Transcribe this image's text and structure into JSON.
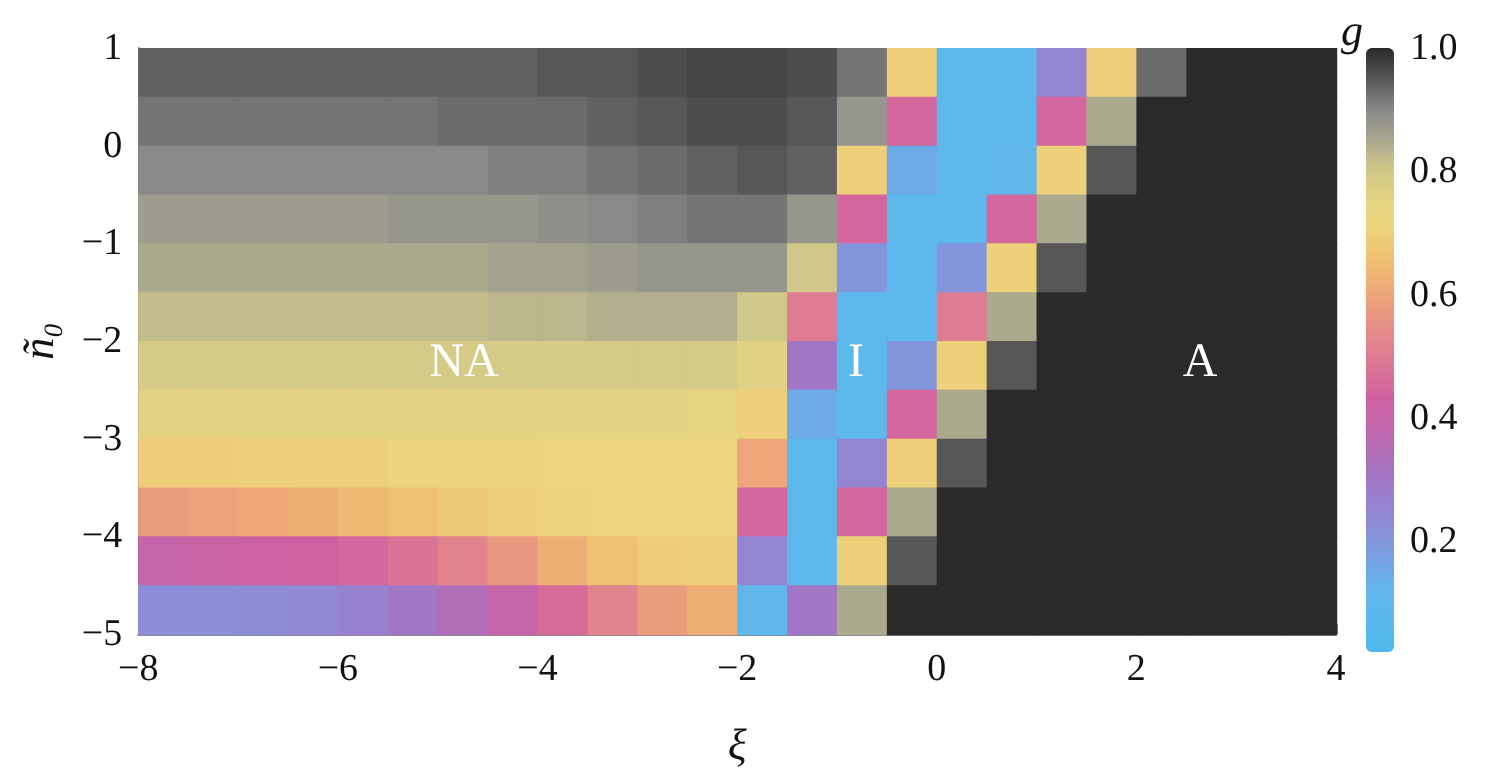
{
  "chart_data": {
    "type": "heatmap",
    "xlabel": "ξ",
    "ylabel": "ñ₀",
    "clabel": "g",
    "xlim": [
      -8,
      4
    ],
    "xticks": [
      -8,
      -6,
      -4,
      -2,
      0,
      2,
      4
    ],
    "ylim": [
      -5,
      1
    ],
    "yticks": [
      -5,
      -4,
      -3,
      -2,
      -1,
      0,
      1
    ],
    "clim": [
      0.02,
      1.0
    ],
    "cticks": [
      0.2,
      0.4,
      0.6,
      0.8,
      {
        "value": 1.0,
        "label": "1.0"
      }
    ],
    "annotations": [
      "NA",
      "I",
      "A"
    ],
    "cells": [
      [
        0.94,
        0.94,
        0.94,
        0.94,
        0.94,
        0.94,
        0.94,
        0.94,
        0.95,
        0.95,
        0.96,
        0.97,
        0.97,
        0.96,
        0.92,
        0.7,
        0.1,
        0.1,
        0.25,
        0.7,
        0.93,
        1,
        1,
        1
      ],
      [
        0.92,
        0.92,
        0.92,
        0.92,
        0.92,
        0.92,
        0.93,
        0.93,
        0.93,
        0.94,
        0.95,
        0.96,
        0.96,
        0.95,
        0.88,
        0.45,
        0.1,
        0.1,
        0.45,
        0.85,
        1,
        1,
        1,
        1
      ],
      [
        0.9,
        0.9,
        0.9,
        0.9,
        0.9,
        0.9,
        0.9,
        0.91,
        0.91,
        0.92,
        0.93,
        0.94,
        0.95,
        0.94,
        0.7,
        0.15,
        0.1,
        0.12,
        0.7,
        0.95,
        1,
        1,
        1,
        1
      ],
      [
        0.87,
        0.87,
        0.87,
        0.87,
        0.87,
        0.88,
        0.88,
        0.88,
        0.89,
        0.9,
        0.91,
        0.92,
        0.92,
        0.88,
        0.45,
        0.1,
        0.1,
        0.45,
        0.85,
        1,
        1,
        1,
        1,
        1
      ],
      [
        0.85,
        0.85,
        0.85,
        0.85,
        0.85,
        0.85,
        0.85,
        0.86,
        0.86,
        0.87,
        0.88,
        0.88,
        0.88,
        0.8,
        0.2,
        0.1,
        0.2,
        0.7,
        0.95,
        1,
        1,
        1,
        1,
        1
      ],
      [
        0.82,
        0.82,
        0.82,
        0.82,
        0.82,
        0.82,
        0.82,
        0.83,
        0.83,
        0.84,
        0.84,
        0.84,
        0.8,
        0.5,
        0.1,
        0.1,
        0.5,
        0.85,
        1,
        1,
        1,
        1,
        1,
        1
      ],
      [
        0.79,
        0.79,
        0.79,
        0.79,
        0.79,
        0.79,
        0.79,
        0.79,
        0.79,
        0.79,
        0.79,
        0.79,
        0.76,
        0.3,
        0.1,
        0.2,
        0.7,
        0.95,
        1,
        1,
        1,
        1,
        1,
        1
      ],
      [
        0.75,
        0.75,
        0.75,
        0.75,
        0.75,
        0.75,
        0.75,
        0.75,
        0.75,
        0.75,
        0.75,
        0.74,
        0.7,
        0.15,
        0.1,
        0.45,
        0.85,
        1,
        1,
        1,
        1,
        1,
        1,
        1
      ],
      [
        0.69,
        0.69,
        0.7,
        0.7,
        0.7,
        0.71,
        0.71,
        0.71,
        0.72,
        0.72,
        0.72,
        0.72,
        0.6,
        0.1,
        0.25,
        0.7,
        0.95,
        1,
        1,
        1,
        1,
        1,
        1,
        1
      ],
      [
        0.58,
        0.59,
        0.6,
        0.62,
        0.64,
        0.66,
        0.68,
        0.7,
        0.71,
        0.72,
        0.72,
        0.72,
        0.45,
        0.1,
        0.45,
        0.85,
        1,
        1,
        1,
        1,
        1,
        1,
        1,
        1
      ],
      [
        0.4,
        0.41,
        0.42,
        0.43,
        0.45,
        0.48,
        0.52,
        0.57,
        0.62,
        0.66,
        0.69,
        0.7,
        0.25,
        0.1,
        0.7,
        0.95,
        1,
        1,
        1,
        1,
        1,
        1,
        1,
        1
      ],
      [
        0.22,
        0.22,
        0.23,
        0.24,
        0.26,
        0.3,
        0.34,
        0.4,
        0.46,
        0.52,
        0.58,
        0.62,
        0.12,
        0.3,
        0.85,
        1,
        1,
        1,
        1,
        1,
        1,
        1,
        1,
        1
      ]
    ]
  }
}
